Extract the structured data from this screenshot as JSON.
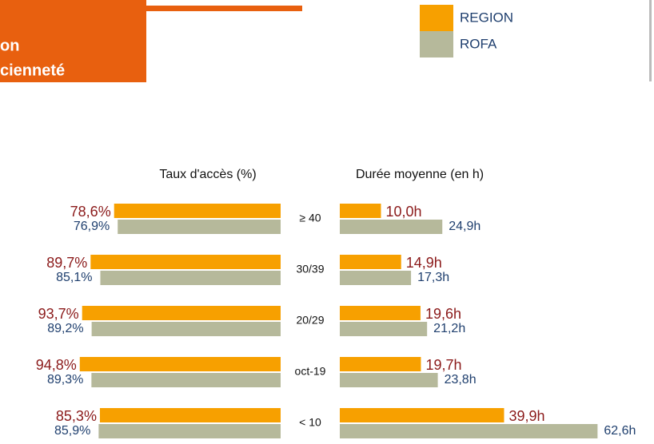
{
  "header": {
    "lines": [
      "on",
      "cienneté"
    ]
  },
  "chart_data": [
    {
      "type": "hbar-left",
      "title": "Taux d'accès (%)",
      "categories": [
        "≥ 40",
        "30/39",
        "20/29",
        "oct-19",
        "< 10"
      ],
      "series": [
        {
          "name": "REGION",
          "color": "#f7a000",
          "label_color": "#8b1a1a",
          "values": [
            78.6,
            89.7,
            93.7,
            94.8,
            85.3
          ],
          "value_labels": [
            "78,6%",
            "89,7%",
            "93,7%",
            "94,8%",
            "85,3%"
          ]
        },
        {
          "name": "ROFA",
          "color": "#b6b99b",
          "label_color": "#1f3f6e",
          "values": [
            76.9,
            85.1,
            89.2,
            89.3,
            85.9
          ],
          "value_labels": [
            "76,9%",
            "85,1%",
            "89,2%",
            "89,3%",
            "85,9%"
          ]
        }
      ]
    },
    {
      "type": "hbar-right",
      "title": "Durée moyenne (en h)",
      "series": [
        {
          "color": "#f7a000",
          "label_color": "#8b1a1a",
          "values": [
            10.0,
            14.9,
            19.6,
            19.7,
            39.9
          ],
          "value_labels": [
            "10,0h",
            "14,9h",
            "19,6h",
            "19,7h",
            "39,9h"
          ]
        },
        {
          "color": "#b6b99b",
          "label_color": "#1f3f6e",
          "values": [
            24.9,
            17.3,
            21.2,
            23.8,
            62.6
          ],
          "value_labels": [
            "24,9h",
            "17,3h",
            "21,2h",
            "23,8h",
            "62,6h"
          ]
        }
      ]
    }
  ]
}
